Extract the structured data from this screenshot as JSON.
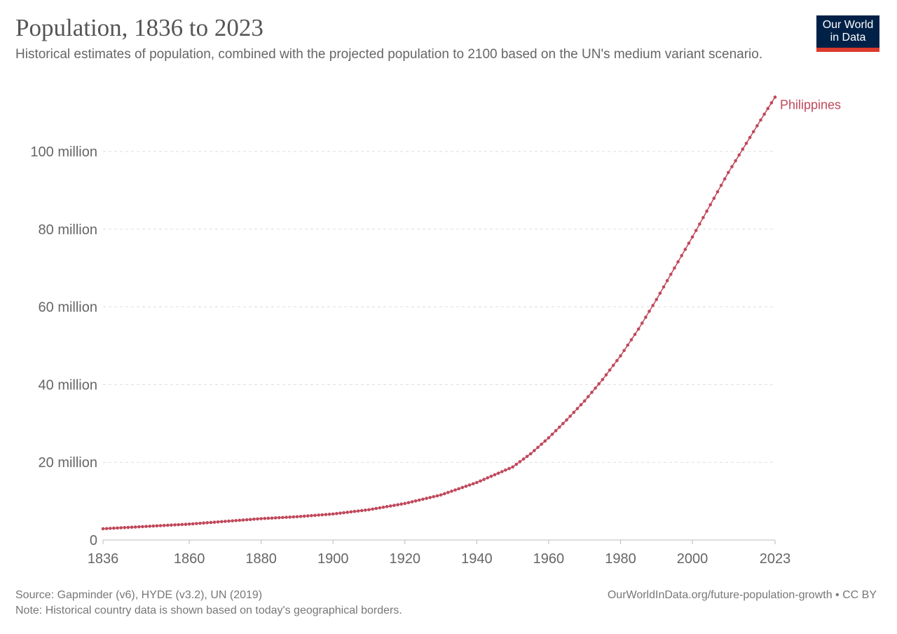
{
  "header": {
    "title": "Population, 1836 to 2023",
    "subtitle": "Historical estimates of population, combined with the projected population to 2100 based on the UN's medium variant scenario.",
    "logo": "Our World in Data"
  },
  "footer": {
    "source": "Source: Gapminder (v6), HYDE (v3.2), UN (2019)",
    "note": "Note: Historical country data is shown based on today's geographical borders.",
    "url": "OurWorldInData.org/future-population-growth • CC BY"
  },
  "chart_data": {
    "type": "line",
    "title": "Population, 1836 to 2023",
    "xlabel": "",
    "ylabel": "",
    "xlim": [
      1836,
      2023
    ],
    "ylim": [
      0,
      114
    ],
    "grid": true,
    "y_ticks": [
      {
        "v": 0,
        "label": "0"
      },
      {
        "v": 20,
        "label": "20 million"
      },
      {
        "v": 40,
        "label": "40 million"
      },
      {
        "v": 60,
        "label": "60 million"
      },
      {
        "v": 80,
        "label": "80 million"
      },
      {
        "v": 100,
        "label": "100 million"
      }
    ],
    "x_ticks": [
      1836,
      1860,
      1880,
      1900,
      1920,
      1940,
      1960,
      1980,
      2000,
      2023
    ],
    "series": [
      {
        "name": "Philippines",
        "color": "#c0485b",
        "unit": "million",
        "x": [
          1836,
          1840,
          1850,
          1860,
          1870,
          1880,
          1890,
          1900,
          1910,
          1920,
          1930,
          1940,
          1950,
          1955,
          1960,
          1965,
          1970,
          1975,
          1980,
          1985,
          1990,
          1995,
          2000,
          2005,
          2010,
          2015,
          2020,
          2023
        ],
        "y": [
          2.9,
          3.1,
          3.6,
          4.1,
          4.8,
          5.5,
          6.0,
          6.7,
          7.8,
          9.4,
          11.6,
          14.8,
          18.8,
          22.2,
          26.3,
          30.9,
          35.8,
          41.3,
          47.4,
          54.3,
          61.9,
          70.0,
          78.0,
          86.3,
          94.6,
          102.1,
          109.6,
          114.0
        ]
      }
    ]
  }
}
